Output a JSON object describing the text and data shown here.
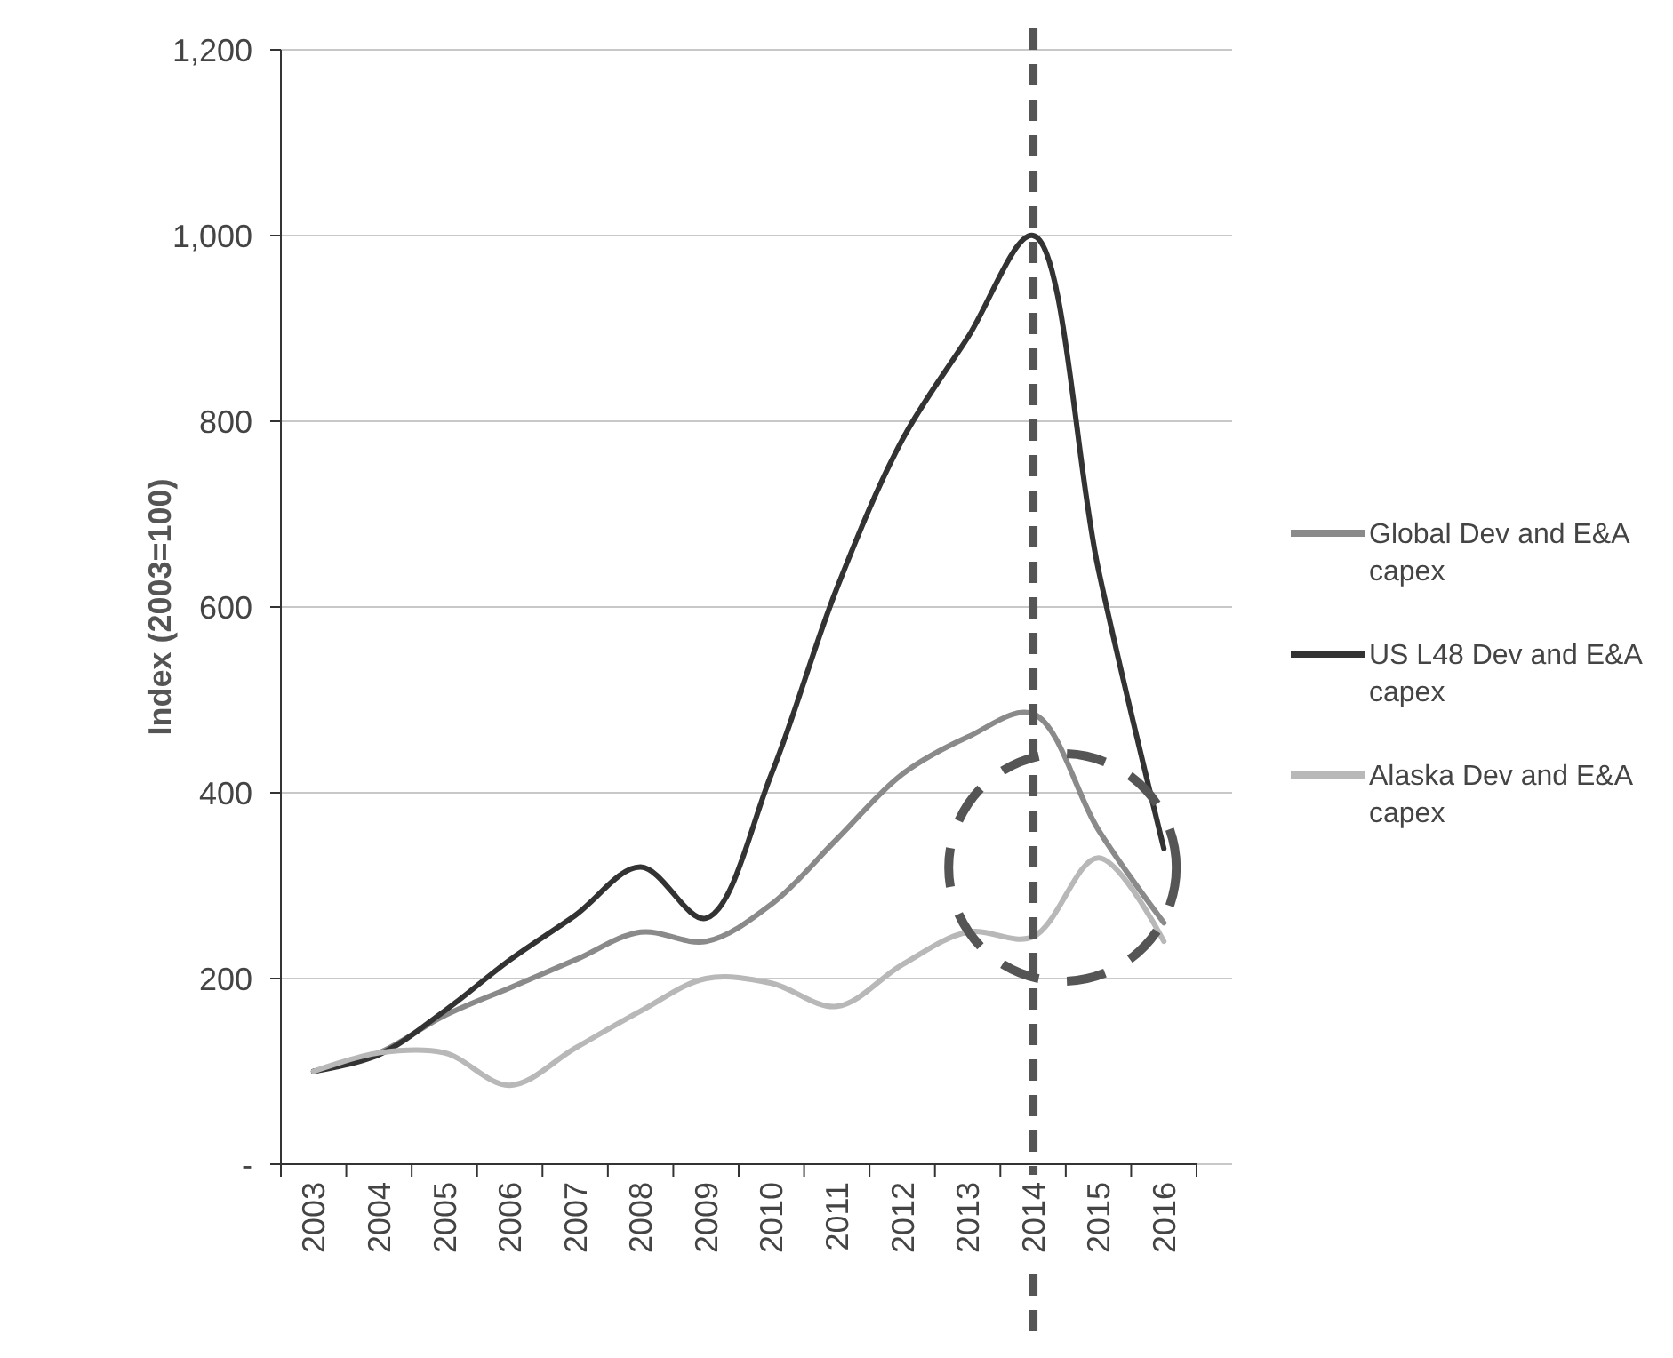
{
  "chart_data": {
    "type": "line",
    "ylabel": "Index (2003=100)",
    "categories": [
      "2003",
      "2004",
      "2005",
      "2006",
      "2007",
      "2008",
      "2009",
      "2010",
      "2011",
      "2012",
      "2013",
      "2014",
      "2015",
      "2016"
    ],
    "series": [
      {
        "name": "Global Dev and E&A capex",
        "color": "#8a8a8a",
        "values": [
          100,
          120,
          160,
          190,
          220,
          250,
          240,
          280,
          350,
          420,
          460,
          485,
          360,
          260
        ]
      },
      {
        "name": "US L48 Dev and E&A capex",
        "color": "#333333",
        "values": [
          100,
          118,
          165,
          220,
          268,
          320,
          265,
          420,
          620,
          780,
          890,
          1000,
          640,
          340
        ]
      },
      {
        "name": "Alaska Dev and E&A capex",
        "color": "#b8b8b8",
        "values": [
          100,
          120,
          120,
          85,
          125,
          165,
          200,
          195,
          170,
          215,
          250,
          245,
          330,
          240
        ]
      }
    ],
    "ylim": [
      0,
      1200
    ],
    "yticks": [
      {
        "value": 0,
        "label": "-"
      },
      {
        "value": 200,
        "label": "200"
      },
      {
        "value": 400,
        "label": "400"
      },
      {
        "value": 600,
        "label": "600"
      },
      {
        "value": 800,
        "label": "800"
      },
      {
        "value": 1000,
        "label": "1,000"
      },
      {
        "value": 1200,
        "label": "1,200"
      }
    ],
    "grid": "y",
    "legend": "right",
    "marker": "none",
    "line_style": "solid",
    "ref_lines": [
      {
        "axis": "x",
        "value": "2014",
        "color": "#555555",
        "line_style": "dashed"
      }
    ]
  }
}
